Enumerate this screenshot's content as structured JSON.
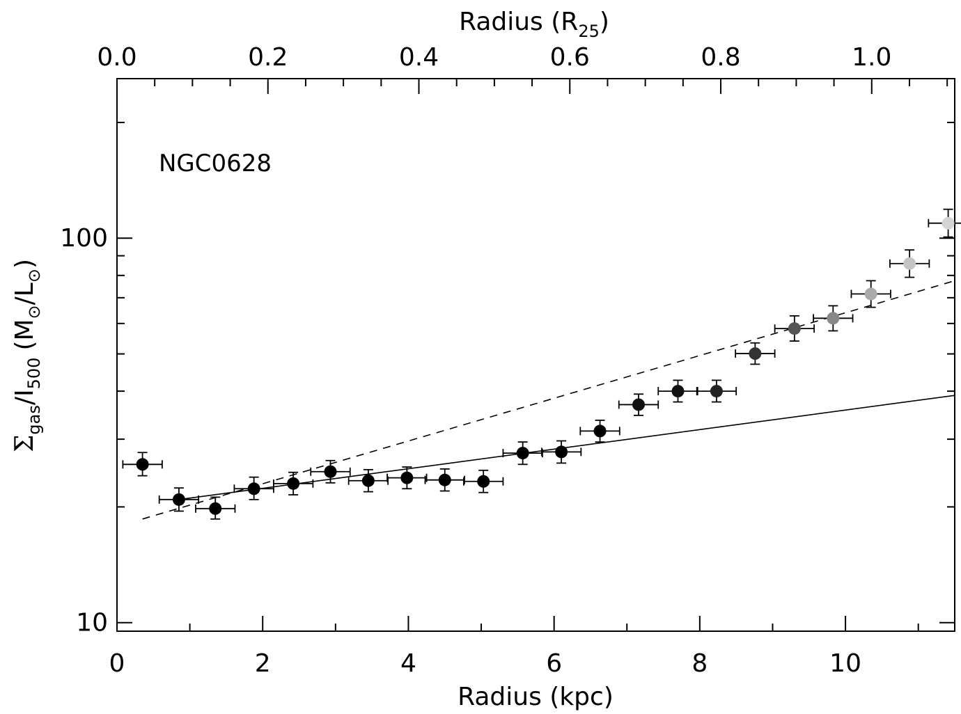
{
  "chart_data": {
    "type": "scatter",
    "annotation": "NGC0628",
    "xlabel": "Radius (kpc)",
    "x2label": {
      "main": "Radius (R",
      "sub": "25",
      "close": ")"
    },
    "ylabel": {
      "sigma": "Σ",
      "gas": "gas",
      "mid": "/I",
      "sub500": "500",
      "units_open": "(M",
      "sun1": "⊙",
      "slash": "/L",
      "sun2": "⊙",
      "units_close": ")"
    },
    "xlim": [
      0,
      11.5
    ],
    "x2lim": [
      0,
      1.11
    ],
    "ylim": [
      9.5,
      260
    ],
    "yscale": "log",
    "xticks": [
      "0",
      "2",
      "4",
      "6",
      "8",
      "10"
    ],
    "x2ticks": [
      "0.0",
      "0.2",
      "0.4",
      "0.6",
      "0.8",
      "1.0"
    ],
    "yticks": [
      "10",
      "100"
    ],
    "points": [
      {
        "x": 0.35,
        "y": 25.8,
        "xerr": 0.27,
        "ylo": 24.1,
        "yhi": 27.7,
        "color": "#000000"
      },
      {
        "x": 0.85,
        "y": 20.9,
        "xerr": 0.27,
        "ylo": 19.5,
        "yhi": 22.4,
        "color": "#000000"
      },
      {
        "x": 1.35,
        "y": 19.8,
        "xerr": 0.27,
        "ylo": 18.6,
        "yhi": 21.2,
        "color": "#000000"
      },
      {
        "x": 1.88,
        "y": 22.3,
        "xerr": 0.27,
        "ylo": 20.9,
        "yhi": 23.9,
        "color": "#000000"
      },
      {
        "x": 2.42,
        "y": 23.0,
        "xerr": 0.27,
        "ylo": 21.5,
        "yhi": 24.6,
        "color": "#000000"
      },
      {
        "x": 2.93,
        "y": 24.7,
        "xerr": 0.27,
        "ylo": 23.1,
        "yhi": 26.4,
        "color": "#000000"
      },
      {
        "x": 3.45,
        "y": 23.4,
        "xerr": 0.27,
        "ylo": 21.9,
        "yhi": 25.0,
        "color": "#000000"
      },
      {
        "x": 3.98,
        "y": 23.8,
        "xerr": 0.27,
        "ylo": 22.3,
        "yhi": 25.4,
        "color": "#000000"
      },
      {
        "x": 4.5,
        "y": 23.5,
        "xerr": 0.27,
        "ylo": 22.0,
        "yhi": 25.1,
        "color": "#000000"
      },
      {
        "x": 5.03,
        "y": 23.3,
        "xerr": 0.27,
        "ylo": 21.8,
        "yhi": 24.9,
        "color": "#000000"
      },
      {
        "x": 5.57,
        "y": 27.6,
        "xerr": 0.27,
        "ylo": 25.8,
        "yhi": 29.5,
        "color": "#000000"
      },
      {
        "x": 6.1,
        "y": 27.8,
        "xerr": 0.27,
        "ylo": 26.0,
        "yhi": 29.7,
        "color": "#000000"
      },
      {
        "x": 6.63,
        "y": 31.5,
        "xerr": 0.27,
        "ylo": 29.5,
        "yhi": 33.6,
        "color": "#000000"
      },
      {
        "x": 7.16,
        "y": 36.9,
        "xerr": 0.27,
        "ylo": 34.6,
        "yhi": 39.3,
        "color": "#111111"
      },
      {
        "x": 7.7,
        "y": 40.0,
        "xerr": 0.27,
        "ylo": 37.5,
        "yhi": 42.7,
        "color": "#111111"
      },
      {
        "x": 8.23,
        "y": 40.0,
        "xerr": 0.27,
        "ylo": 37.5,
        "yhi": 42.7,
        "color": "#222222"
      },
      {
        "x": 8.76,
        "y": 50.1,
        "xerr": 0.27,
        "ylo": 47.0,
        "yhi": 53.4,
        "color": "#333333"
      },
      {
        "x": 9.3,
        "y": 58.2,
        "xerr": 0.27,
        "ylo": 54.0,
        "yhi": 62.8,
        "color": "#555555"
      },
      {
        "x": 9.83,
        "y": 61.9,
        "xerr": 0.27,
        "ylo": 57.4,
        "yhi": 66.7,
        "color": "#888888"
      },
      {
        "x": 10.35,
        "y": 71.6,
        "xerr": 0.27,
        "ylo": 66.1,
        "yhi": 77.5,
        "color": "#aaaaaa"
      },
      {
        "x": 10.88,
        "y": 85.9,
        "xerr": 0.27,
        "ylo": 79.1,
        "yhi": 93.2,
        "color": "#c4c4c4"
      },
      {
        "x": 11.41,
        "y": 109.4,
        "xerr": 0.27,
        "ylo": 100.7,
        "yhi": 118.9,
        "color": "#d4d4d4"
      }
    ],
    "lines": [
      {
        "style": "solid",
        "x": [
          0.85,
          11.5
        ],
        "y": [
          20.9,
          39.0
        ]
      },
      {
        "style": "dashed",
        "x": [
          0.35,
          11.5
        ],
        "y": [
          18.6,
          77.5
        ]
      }
    ]
  }
}
